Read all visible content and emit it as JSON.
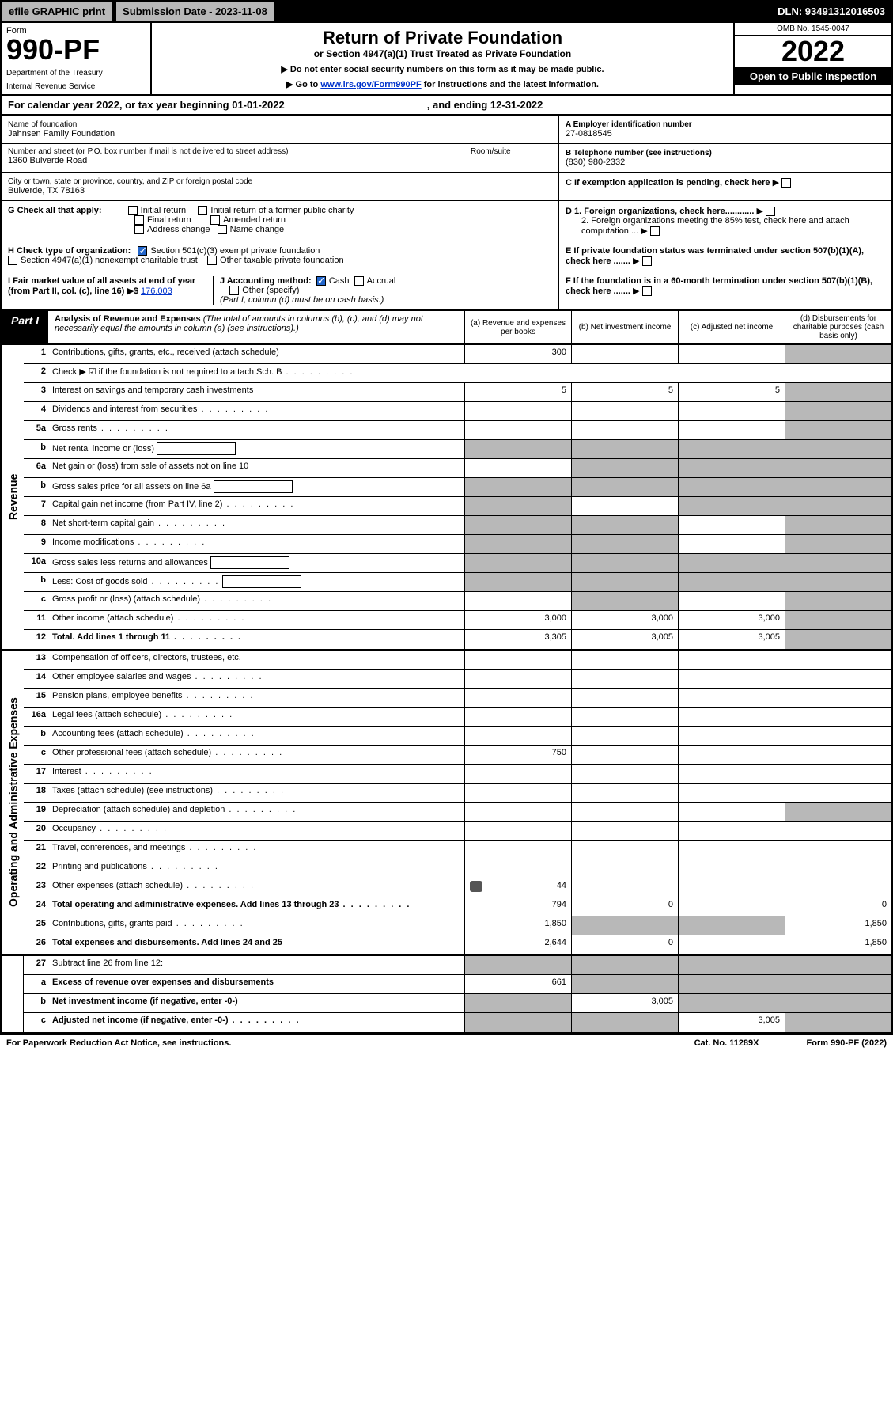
{
  "top": {
    "efile": "efile GRAPHIC print",
    "subdate_label": "Submission Date - 2023-11-08",
    "dln": "DLN: 93491312016503"
  },
  "header": {
    "form": "Form",
    "formnum": "990-PF",
    "dept": "Department of the Treasury",
    "irs": "Internal Revenue Service",
    "title": "Return of Private Foundation",
    "subtitle": "or Section 4947(a)(1) Trust Treated as Private Foundation",
    "note1": "▶ Do not enter social security numbers on this form as it may be made public.",
    "note2_pre": "▶ Go to ",
    "note2_link": "www.irs.gov/Form990PF",
    "note2_post": " for instructions and the latest information.",
    "omb": "OMB No. 1545-0047",
    "year": "2022",
    "open": "Open to Public Inspection"
  },
  "calyear": {
    "pre": "For calendar year 2022, or tax year beginning 01-01-2022",
    "mid": ", and ending 12-31-2022"
  },
  "ident": {
    "name_label": "Name of foundation",
    "name": "Jahnsen Family Foundation",
    "addr_label": "Number and street (or P.O. box number if mail is not delivered to street address)",
    "addr": "1360 Bulverde Road",
    "room_label": "Room/suite",
    "city_label": "City or town, state or province, country, and ZIP or foreign postal code",
    "city": "Bulverde, TX  78163",
    "a_label": "A Employer identification number",
    "a_val": "27-0818545",
    "b_label": "B Telephone number (see instructions)",
    "b_val": "(830) 980-2332",
    "c_label": "C If exemption application is pending, check here",
    "g_label": "G Check all that apply:",
    "g_opts": [
      "Initial return",
      "Final return",
      "Address change",
      "Initial return of a former public charity",
      "Amended return",
      "Name change"
    ],
    "d1": "D 1. Foreign organizations, check here............",
    "d2": "2. Foreign organizations meeting the 85% test, check here and attach computation ...",
    "h_label": "H Check type of organization:",
    "h1": "Section 501(c)(3) exempt private foundation",
    "h2": "Section 4947(a)(1) nonexempt charitable trust",
    "h3": "Other taxable private foundation",
    "e_label": "E  If private foundation status was terminated under section 507(b)(1)(A), check here .......",
    "i_label": "I Fair market value of all assets at end of year (from Part II, col. (c), line 16) ▶$ ",
    "i_val": "176,003",
    "j_label": "J Accounting method:",
    "j_cash": "Cash",
    "j_accrual": "Accrual",
    "j_other": "Other (specify)",
    "j_note": "(Part I, column (d) must be on cash basis.)",
    "f_label": "F  If the foundation is in a 60-month termination under section 507(b)(1)(B), check here ......."
  },
  "part1": {
    "label": "Part I",
    "title": "Analysis of Revenue and Expenses",
    "paren": " (The total of amounts in columns (b), (c), and (d) may not necessarily equal the amounts in column (a) (see instructions).)",
    "cols": {
      "a": "(a)    Revenue and expenses per books",
      "b": "(b)   Net investment income",
      "c": "(c)   Adjusted net income",
      "d": "(d)  Disbursements for charitable purposes (cash basis only)"
    }
  },
  "sides": {
    "rev": "Revenue",
    "exp": "Operating and Administrative Expenses"
  },
  "rows": [
    {
      "n": "1",
      "d": "Contributions, gifts, grants, etc., received (attach schedule)",
      "a": "300",
      "b": "",
      "c": "",
      "d_shade": true
    },
    {
      "n": "2",
      "d": "Check ▶ ☑ if the foundation is not required to attach Sch. B",
      "nocells": true,
      "dots": true
    },
    {
      "n": "3",
      "d": "Interest on savings and temporary cash investments",
      "a": "5",
      "b": "5",
      "c": "5",
      "d_shade": true
    },
    {
      "n": "4",
      "d": "Dividends and interest from securities",
      "dots": true,
      "a": "",
      "b": "",
      "c": "",
      "d_shade": true
    },
    {
      "n": "5a",
      "d": "Gross rents",
      "dots": true,
      "a": "",
      "b": "",
      "c": "",
      "d_shade": true
    },
    {
      "n": "b",
      "d": "Net rental income or (loss)",
      "box": true,
      "all_shade": true
    },
    {
      "n": "6a",
      "d": "Net gain or (loss) from sale of assets not on line 10",
      "a": "",
      "bcd_shade": true
    },
    {
      "n": "b",
      "d": "Gross sales price for all assets on line 6a",
      "box": true,
      "all_shade": true
    },
    {
      "n": "7",
      "d": "Capital gain net income (from Part IV, line 2)",
      "dots": true,
      "a_shade": true,
      "b": "",
      "cd_shade": true
    },
    {
      "n": "8",
      "d": "Net short-term capital gain",
      "dots": true,
      "ab_shade": true,
      "c": "",
      "d_shade": true
    },
    {
      "n": "9",
      "d": "Income modifications",
      "dots": true,
      "ab_shade": true,
      "c": "",
      "d_shade": true
    },
    {
      "n": "10a",
      "d": "Gross sales less returns and allowances",
      "box": true,
      "all_shade": true
    },
    {
      "n": "b",
      "d": "Less: Cost of goods sold",
      "dots": true,
      "box": true,
      "all_shade": true
    },
    {
      "n": "c",
      "d": "Gross profit or (loss) (attach schedule)",
      "dots": true,
      "a": "",
      "b_shade": true,
      "c": "",
      "d_shade": true
    },
    {
      "n": "11",
      "d": "Other income (attach schedule)",
      "dots": true,
      "a": "3,000",
      "b": "3,000",
      "c": "3,000",
      "d_shade": true
    },
    {
      "n": "12",
      "d": "Total. Add lines 1 through 11",
      "dots": true,
      "bold": true,
      "a": "3,305",
      "b": "3,005",
      "c": "3,005",
      "d_shade": true
    }
  ],
  "exp_rows": [
    {
      "n": "13",
      "d": "Compensation of officers, directors, trustees, etc.",
      "a": "",
      "b": "",
      "c": "",
      "dd": ""
    },
    {
      "n": "14",
      "d": "Other employee salaries and wages",
      "dots": true,
      "a": "",
      "b": "",
      "c": "",
      "dd": ""
    },
    {
      "n": "15",
      "d": "Pension plans, employee benefits",
      "dots": true,
      "a": "",
      "b": "",
      "c": "",
      "dd": ""
    },
    {
      "n": "16a",
      "d": "Legal fees (attach schedule)",
      "dots": true,
      "a": "",
      "b": "",
      "c": "",
      "dd": ""
    },
    {
      "n": "b",
      "d": "Accounting fees (attach schedule)",
      "dots": true,
      "a": "",
      "b": "",
      "c": "",
      "dd": ""
    },
    {
      "n": "c",
      "d": "Other professional fees (attach schedule)",
      "dots": true,
      "a": "750",
      "b": "",
      "c": "",
      "dd": ""
    },
    {
      "n": "17",
      "d": "Interest",
      "dots": true,
      "a": "",
      "b": "",
      "c": "",
      "dd": ""
    },
    {
      "n": "18",
      "d": "Taxes (attach schedule) (see instructions)",
      "dots": true,
      "a": "",
      "b": "",
      "c": "",
      "dd": ""
    },
    {
      "n": "19",
      "d": "Depreciation (attach schedule) and depletion",
      "dots": true,
      "a": "",
      "b": "",
      "c": "",
      "d_shade": true
    },
    {
      "n": "20",
      "d": "Occupancy",
      "dots": true,
      "a": "",
      "b": "",
      "c": "",
      "dd": ""
    },
    {
      "n": "21",
      "d": "Travel, conferences, and meetings",
      "dots": true,
      "a": "",
      "b": "",
      "c": "",
      "dd": ""
    },
    {
      "n": "22",
      "d": "Printing and publications",
      "dots": true,
      "a": "",
      "b": "",
      "c": "",
      "dd": ""
    },
    {
      "n": "23",
      "d": "Other expenses (attach schedule)",
      "dots": true,
      "icon": true,
      "a": "44",
      "b": "",
      "c": "",
      "dd": ""
    },
    {
      "n": "24",
      "d": "Total operating and administrative expenses. Add lines 13 through 23",
      "dots": true,
      "bold": true,
      "a": "794",
      "b": "0",
      "c": "",
      "dd": "0"
    },
    {
      "n": "25",
      "d": "Contributions, gifts, grants paid",
      "dots": true,
      "a": "1,850",
      "bc_shade": true,
      "dd": "1,850"
    },
    {
      "n": "26",
      "d": "Total expenses and disbursements. Add lines 24 and 25",
      "bold": true,
      "a": "2,644",
      "b": "0",
      "c": "",
      "dd": "1,850"
    }
  ],
  "net_rows": [
    {
      "n": "27",
      "d": "Subtract line 26 from line 12:",
      "all_shade": true
    },
    {
      "n": "a",
      "d": "Excess of revenue over expenses and disbursements",
      "bold": true,
      "a": "661",
      "bcd_shade": true
    },
    {
      "n": "b",
      "d": "Net investment income (if negative, enter -0-)",
      "bold": true,
      "a_shade": true,
      "b": "3,005",
      "cd_shade": true
    },
    {
      "n": "c",
      "d": "Adjusted net income (if negative, enter -0-)",
      "dots": true,
      "bold": true,
      "ab_shade": true,
      "c": "3,005",
      "d_shade": true
    }
  ],
  "footer": {
    "left": "For Paperwork Reduction Act Notice, see instructions.",
    "mid": "Cat. No. 11289X",
    "right": "Form 990-PF (2022)"
  },
  "colors": {
    "shade": "#b8b8b8",
    "link": "#0033cc",
    "check": "#2266cc"
  }
}
